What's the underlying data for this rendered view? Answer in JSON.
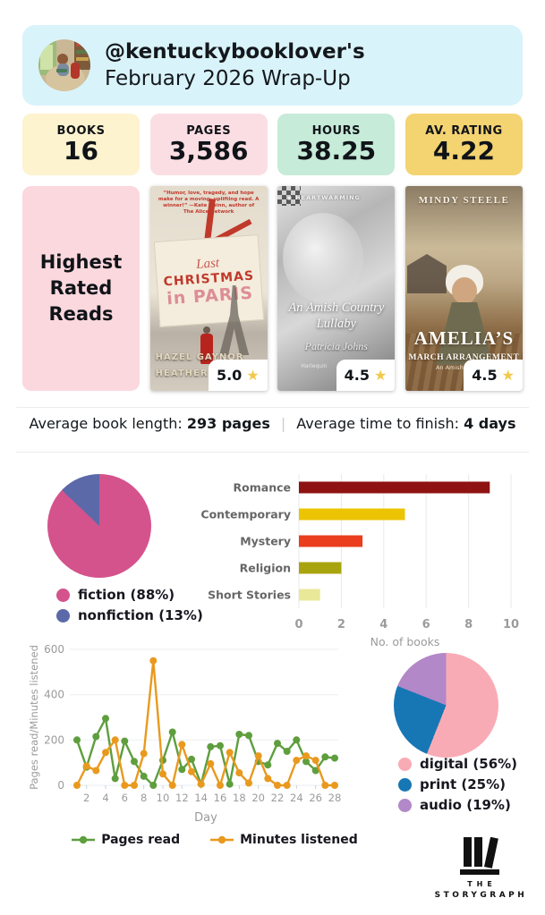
{
  "header": {
    "line1": "@kentuckybooklover's",
    "line2": "February 2026 Wrap-Up"
  },
  "stats": [
    {
      "label": "BOOKS",
      "value": "16",
      "bg": "#fdf3cf"
    },
    {
      "label": "PAGES",
      "value": "3,586",
      "bg": "#fbdee3"
    },
    {
      "label": "HOURS",
      "value": "38.25",
      "bg": "#c6ebd9"
    },
    {
      "label": "AV. RATING",
      "value": "4.22",
      "bg": "#f4d371"
    }
  ],
  "highest_rated": {
    "title": "Highest Rated Reads",
    "books": [
      {
        "rating": "5.0",
        "quote": "“Humor, love, tragedy, and hope make for a moving, uplifting read. A winner!” —Kate Quinn, author of The Alice Network",
        "title_line1": "Last",
        "title_line2": "CHRISTMAS",
        "title_line3": "in PARIS",
        "author1": "HAZEL GAYNOR",
        "author2": "HEATHER WEBB"
      },
      {
        "rating": "4.5",
        "imprint": "HEARTWARMING",
        "title": "An Amish Country Lullaby",
        "author": "Patricia Johns",
        "publisher": "Harlequin"
      },
      {
        "rating": "4.5",
        "author": "MINDY STEELE",
        "title_line1": "AMELIA’S",
        "title_line2": "MARCH ARRANGEMENT",
        "subtitle": "An Amish Romance"
      }
    ]
  },
  "icons": {
    "star": "★"
  },
  "averages": {
    "book_length_label": "Average book length: ",
    "book_length_value": "293 pages",
    "separator": "|",
    "time_to_finish_label": "Average time to finish: ",
    "time_to_finish_value": "4 days"
  },
  "chart_data": [
    {
      "id": "fiction_pie",
      "type": "pie",
      "title": "",
      "legend_position": "bottom-left",
      "slices": [
        {
          "label": "fiction (88%)",
          "value": 88,
          "color": "#d4538c"
        },
        {
          "label": "nonfiction (13%)",
          "value": 13,
          "color": "#5c69a9"
        }
      ]
    },
    {
      "id": "genres_bar",
      "type": "bar",
      "orientation": "horizontal",
      "categories": [
        "Romance",
        "Contemporary",
        "Mystery",
        "Religion",
        "Short Stories"
      ],
      "values": [
        9,
        5,
        3,
        2,
        1
      ],
      "colors": [
        "#8f1212",
        "#ecc404",
        "#ea3e1e",
        "#a8a40e",
        "#e9e898"
      ],
      "xlabel": "No. of books",
      "xlim": [
        0,
        10
      ],
      "xticks": [
        0,
        2,
        4,
        6,
        8,
        10
      ],
      "grid": true
    },
    {
      "id": "daily_line",
      "type": "line",
      "x": [
        1,
        2,
        3,
        4,
        5,
        6,
        7,
        8,
        9,
        10,
        11,
        12,
        13,
        14,
        15,
        16,
        17,
        18,
        19,
        20,
        21,
        22,
        23,
        24,
        25,
        26,
        27,
        28
      ],
      "series": [
        {
          "name": "Pages read",
          "color": "#5e9e3d",
          "values": [
            200,
            80,
            215,
            295,
            30,
            195,
            105,
            40,
            0,
            110,
            235,
            70,
            115,
            5,
            170,
            175,
            5,
            225,
            220,
            105,
            90,
            185,
            150,
            200,
            105,
            65,
            125,
            120
          ]
        },
        {
          "name": "Minutes listened",
          "color": "#e9991e",
          "values": [
            0,
            85,
            65,
            145,
            200,
            0,
            0,
            140,
            550,
            50,
            0,
            180,
            60,
            5,
            95,
            0,
            145,
            55,
            10,
            130,
            30,
            0,
            0,
            110,
            130,
            110,
            0,
            0
          ]
        }
      ],
      "xlabel": "Day",
      "ylabel": "Pages read/Minutes listened",
      "ylim": [
        0,
        600
      ],
      "yticks": [
        0,
        200,
        400,
        600
      ],
      "xticks": [
        2,
        4,
        6,
        8,
        10,
        12,
        14,
        16,
        18,
        20,
        22,
        24,
        26,
        28
      ],
      "grid": true,
      "legend_position": "bottom"
    },
    {
      "id": "format_pie",
      "type": "pie",
      "title": "",
      "legend_position": "bottom-left",
      "slices": [
        {
          "label": "digital (56%)",
          "value": 56,
          "color": "#f9abb5"
        },
        {
          "label": "print (25%)",
          "value": 25,
          "color": "#1777b5"
        },
        {
          "label": "audio (19%)",
          "value": 19,
          "color": "#b288c8"
        }
      ]
    }
  ],
  "logo": {
    "line1": "THE",
    "line2": "STORYGRAPH"
  }
}
